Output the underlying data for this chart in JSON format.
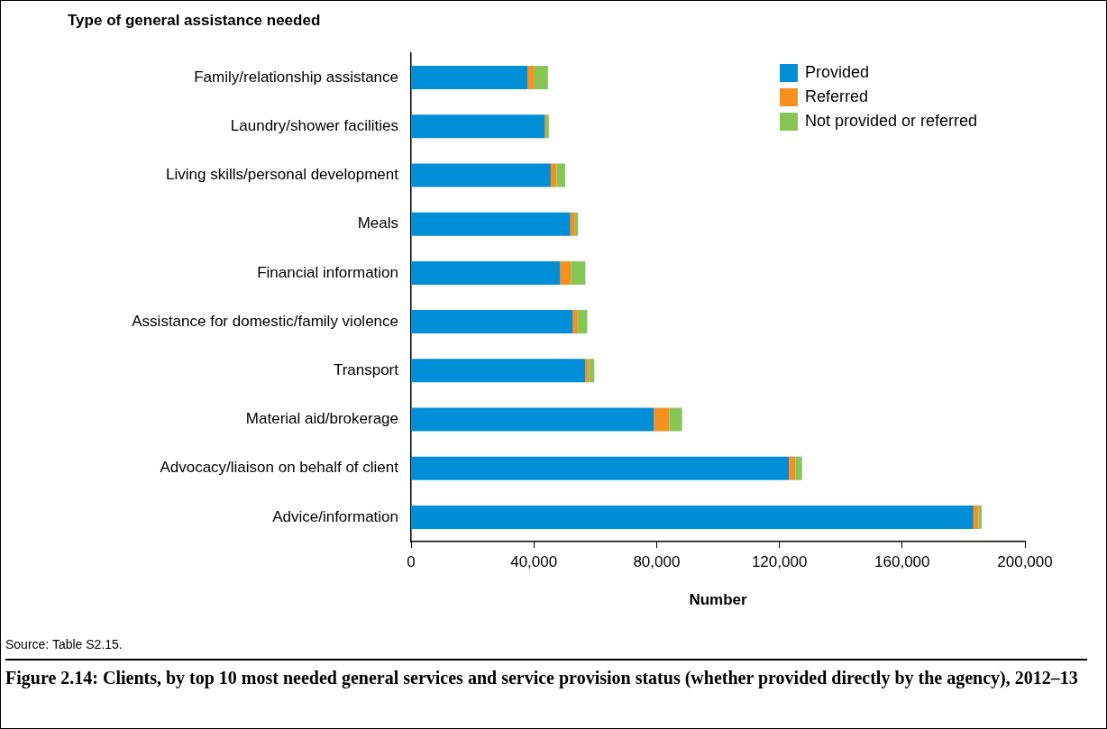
{
  "chart_data": {
    "type": "bar",
    "orientation": "horizontal",
    "stacked": true,
    "title": "Figure 2.14: Clients, by top 10 most needed general services and service provision status (whether provided directly by the agency), 2012–13",
    "ylabel": "Type of general assistance needed",
    "xlabel": "Number",
    "categories": [
      "Family/relationship assistance",
      "Laundry/shower facilities",
      "Living skills/personal development",
      "Meals",
      "Financial information",
      "Assistance for domestic/family violence",
      "Transport",
      "Material aid/brokerage",
      "Advocacy/liaison on behalf of client",
      "Advice/information"
    ],
    "series": [
      {
        "name": "Provided",
        "color": "#008fd7",
        "values": [
          38000,
          43600,
          45500,
          51900,
          48600,
          52700,
          56800,
          79100,
          123100,
          183200
        ]
      },
      {
        "name": "Referred",
        "color": "#f7901e",
        "values": [
          2200,
          500,
          1900,
          1500,
          3500,
          1600,
          1200,
          5000,
          2100,
          1700
        ]
      },
      {
        "name": "Not provided or referred",
        "color": "#86c654",
        "values": [
          4400,
          800,
          2800,
          1000,
          4700,
          3100,
          1700,
          4200,
          2200,
          1000
        ]
      }
    ],
    "xlim": [
      0,
      200000
    ],
    "xticks": [
      {
        "value": 0,
        "label": "0"
      },
      {
        "value": 40000,
        "label": "40,000"
      },
      {
        "value": 80000,
        "label": "80,000"
      },
      {
        "value": 120000,
        "label": "120,000"
      },
      {
        "value": 160000,
        "label": "160,000"
      },
      {
        "value": 200000,
        "label": "200,000"
      }
    ],
    "grid": false,
    "legend": "top right",
    "annotations": [
      "Source: Table S2.15."
    ]
  }
}
